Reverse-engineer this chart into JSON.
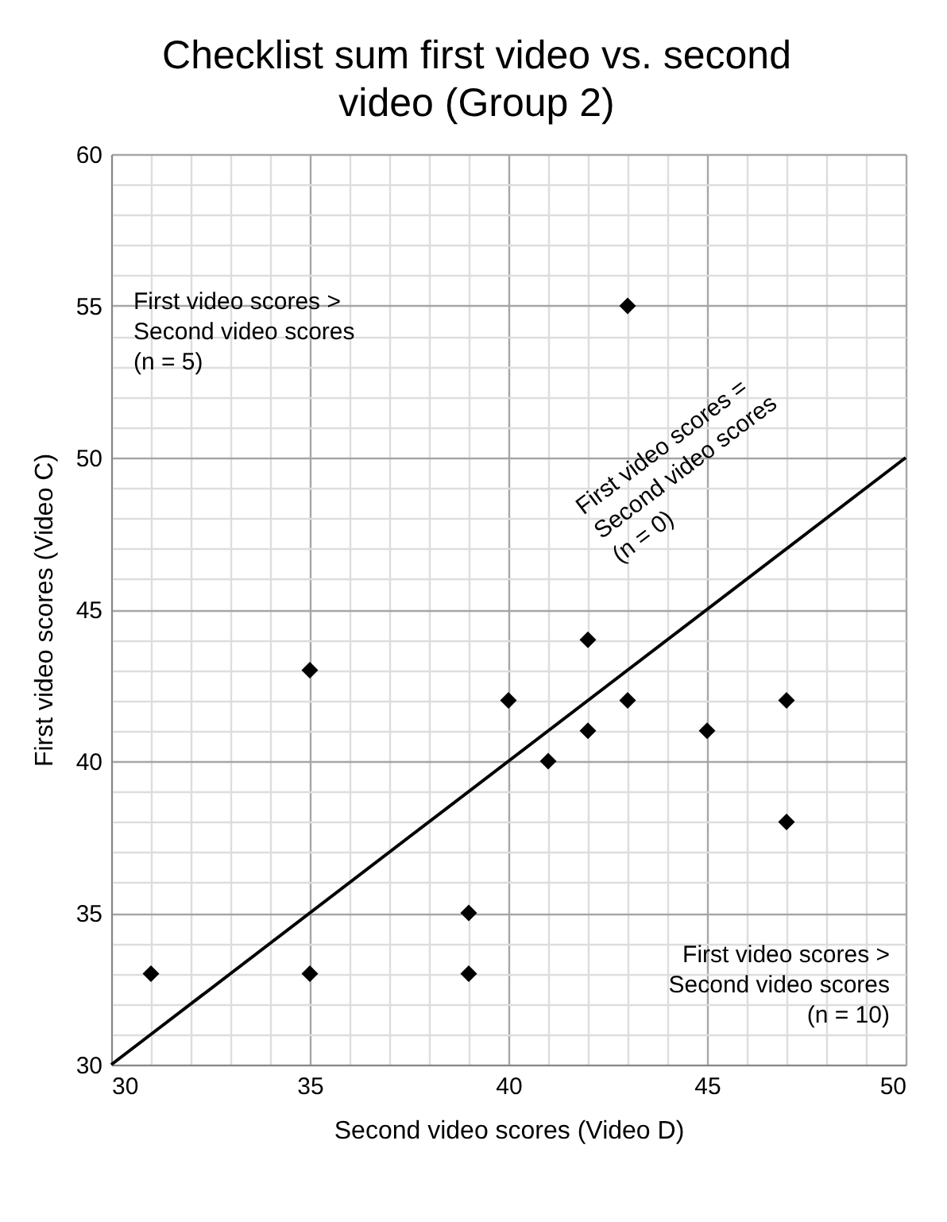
{
  "chart_data": {
    "type": "scatter",
    "title": "Checklist sum first video vs. second video (Group 2)",
    "xlabel": "Second video scores (Video D)",
    "ylabel": "First video scores (Video C)",
    "xlim": [
      30,
      50
    ],
    "ylim": [
      30,
      60
    ],
    "xticks": [
      30,
      {
        "value": 31,
        "label": null
      },
      {
        "value": 32,
        "label": null
      },
      {
        "value": 33,
        "label": null
      },
      {
        "value": 34,
        "label": null
      },
      35,
      {
        "value": 36,
        "label": null
      },
      {
        "value": 37,
        "label": null
      },
      {
        "value": 38,
        "label": null
      },
      {
        "value": 39,
        "label": null
      },
      40,
      {
        "value": 41,
        "label": null
      },
      {
        "value": 42,
        "label": null
      },
      {
        "value": 43,
        "label": null
      },
      {
        "value": 44,
        "label": null
      },
      45,
      {
        "value": 46,
        "label": null
      },
      {
        "value": 47,
        "label": null
      },
      {
        "value": 48,
        "label": null
      },
      {
        "value": 49,
        "label": null
      },
      50
    ],
    "yticks": [
      30,
      {
        "value": 31,
        "label": null
      },
      {
        "value": 32,
        "label": null
      },
      {
        "value": 33,
        "label": null
      },
      {
        "value": 34,
        "label": null
      },
      35,
      {
        "value": 36,
        "label": null
      },
      {
        "value": 37,
        "label": null
      },
      {
        "value": 38,
        "label": null
      },
      {
        "value": 39,
        "label": null
      },
      40,
      {
        "value": 41,
        "label": null
      },
      {
        "value": 42,
        "label": null
      },
      {
        "value": 43,
        "label": null
      },
      {
        "value": 44,
        "label": null
      },
      45,
      {
        "value": 46,
        "label": null
      },
      {
        "value": 47,
        "label": null
      },
      {
        "value": 48,
        "label": null
      },
      {
        "value": 49,
        "label": null
      },
      50,
      {
        "value": 51,
        "label": null
      },
      {
        "value": 52,
        "label": null
      },
      {
        "value": 53,
        "label": null
      },
      {
        "value": 54,
        "label": null
      },
      55,
      {
        "value": 56,
        "label": null
      },
      {
        "value": 57,
        "label": null
      },
      {
        "value": 58,
        "label": null
      },
      {
        "value": 59,
        "label": null
      },
      60
    ],
    "grid": true,
    "series": [
      {
        "marker": "diamond",
        "color": "#000000",
        "x": [
          31,
          35,
          35,
          39,
          39,
          40,
          41,
          42,
          42,
          43,
          43,
          45,
          47,
          47
        ],
        "values": [
          33,
          43,
          33,
          35,
          33,
          42,
          40,
          44,
          41,
          42,
          55,
          41,
          42,
          38
        ]
      },
      {
        "type": "line",
        "color": "#000000",
        "x": [
          30,
          50
        ],
        "values": [
          30,
          50
        ]
      }
    ],
    "annotations": [
      "First video scores > Second video scores (n = 5)",
      "First video scores = Second video scores (n = 0)",
      "First video scores > Second video scores (n = 10)"
    ]
  }
}
